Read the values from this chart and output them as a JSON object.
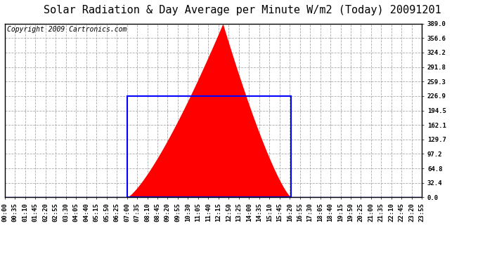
{
  "title": "Solar Radiation & Day Average per Minute W/m2 (Today) 20091201",
  "copyright": "Copyright 2009 Cartronics.com",
  "y_ticks": [
    0.0,
    32.4,
    64.8,
    97.2,
    129.7,
    162.1,
    194.5,
    226.9,
    259.3,
    291.8,
    324.2,
    356.6,
    389.0
  ],
  "y_max": 389.0,
  "y_min": 0.0,
  "solar_peak": 389.0,
  "day_avg": 226.9,
  "bg_color": "#ffffff",
  "plot_bg_color": "#ffffff",
  "fill_color": "#ff0000",
  "avg_line_color": "#0000ff",
  "grid_color": "#aaaaaa",
  "border_color": "#000000",
  "title_fontsize": 11,
  "copyright_fontsize": 7,
  "tick_label_fontsize": 6.5,
  "sunrise_minute": 420,
  "sunset_minute": 985,
  "peak_minute": 750,
  "total_minutes": 1440,
  "step_minutes": 5,
  "tick_every_n": 7
}
